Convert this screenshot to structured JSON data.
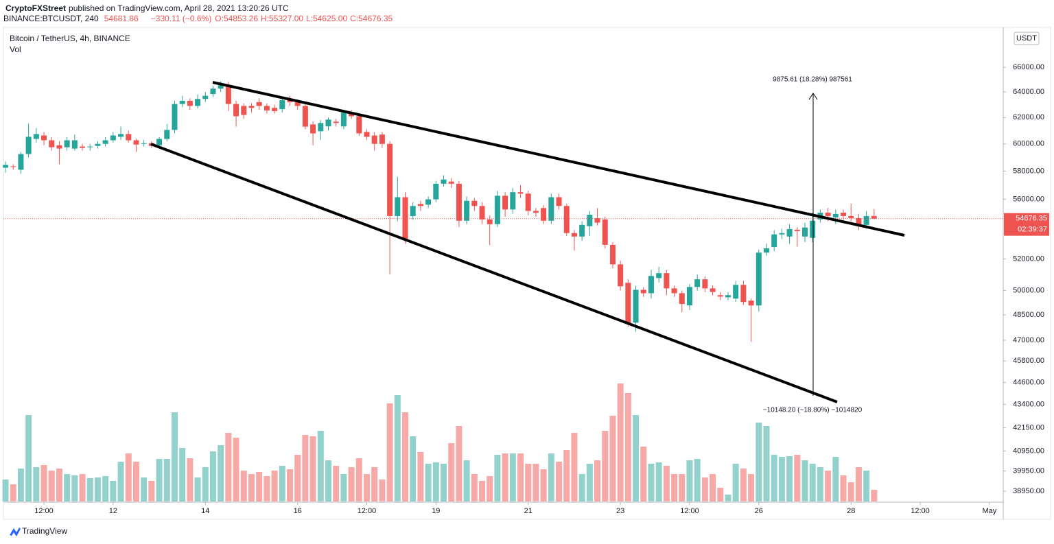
{
  "header": {
    "publisher": "CryptoFXStreet",
    "published": "published on TradingView.com, April 28, 2021 13:20:26 UTC",
    "symbol": "BINANCE:BTCUSDT, 240",
    "price": "54681.86",
    "change": "−330.11 (−0.6%)",
    "open": "O:54853.26",
    "high": "H:55327.00",
    "low": "L:54625.00",
    "close": "C:54676.35"
  },
  "chart_data": {
    "type": "candlestick",
    "title": "Bitcoin / TetherUS, 4h, BINANCE",
    "volume_label": "Vol",
    "currency": "USDT",
    "last_price_label": "54676.35",
    "countdown": "02:39:37",
    "log_scale": true,
    "up_color": "#26a69a",
    "down_color": "#ef5350",
    "volume_up_color": "#93d2cc",
    "volume_down_color": "#f7a9a7",
    "candles": {
      "open": [
        58250,
        58350,
        58100,
        59250,
        60370,
        60630,
        60270,
        59900,
        59750,
        59650,
        59800,
        59750,
        59850,
        60000,
        60270,
        60530,
        60740,
        60270,
        60000,
        60050,
        59900,
        60370,
        61050,
        63050,
        63300,
        62900,
        63450,
        63840,
        64270,
        64540,
        63050,
        62900,
        62900,
        63200,
        62900,
        62750,
        62650,
        63350,
        63200,
        62900,
        61470,
        60950,
        61320,
        61680,
        61320,
        62380,
        62100,
        60900,
        60630,
        60700,
        60000,
        54850,
        56150,
        54850,
        55680,
        55630,
        56000,
        57100,
        57250,
        57100,
        54530,
        55900,
        55540,
        54620,
        54300,
        56250,
        55300,
        56500,
        56400,
        55200,
        55400,
        54530,
        56150,
        55540,
        53700,
        53470,
        54160,
        54700,
        54620,
        52920,
        51650,
        50480,
        48040,
        50040,
        49830,
        50780,
        51090,
        50130,
        49830,
        49080,
        50220,
        50700,
        50130,
        49710,
        49580,
        49500,
        50350,
        49370,
        49080,
        52410,
        52780,
        53610,
        53470,
        53920,
        53470,
        53380,
        54620,
        55080,
        54760,
        55080,
        54850,
        54710,
        54250,
        54853.26
      ],
      "high": [
        58700,
        58500,
        59400,
        61530,
        61200,
        60900,
        60500,
        60200,
        60500,
        60700,
        60000,
        60000,
        60200,
        60500,
        60900,
        61300,
        61000,
        60400,
        60300,
        60200,
        60500,
        61500,
        63300,
        63700,
        63500,
        63800,
        64000,
        64500,
        64850,
        64800,
        63300,
        63100,
        63100,
        63500,
        63100,
        63000,
        63500,
        63700,
        63400,
        63100,
        61700,
        61800,
        62000,
        61900,
        62600,
        62600,
        62300,
        61100,
        60900,
        60900,
        60200,
        57600,
        56500,
        55800,
        55900,
        56200,
        57300,
        57700,
        57500,
        57300,
        56200,
        56100,
        55800,
        54900,
        56600,
        56500,
        56800,
        57000,
        56600,
        55400,
        55600,
        56400,
        56400,
        55700,
        53900,
        54500,
        55200,
        55400,
        54800,
        53100,
        51900,
        50700,
        50300,
        50200,
        51300,
        51500,
        51300,
        50300,
        50000,
        50400,
        51000,
        50900,
        50300,
        49900,
        49900,
        50600,
        50600,
        49500,
        52600,
        53000,
        53900,
        54000,
        54300,
        54100,
        54400,
        55080,
        55300,
        55400,
        55300,
        55300,
        55700,
        55000,
        55200,
        55327
      ],
      "low": [
        57900,
        58100,
        57800,
        59000,
        60100,
        59900,
        59500,
        58500,
        59500,
        59500,
        59500,
        59500,
        59650,
        59800,
        60100,
        60300,
        60100,
        59400,
        59800,
        59700,
        59800,
        60200,
        60800,
        62800,
        62600,
        62700,
        63200,
        63600,
        64000,
        62500,
        61300,
        61900,
        62400,
        62600,
        62300,
        62300,
        62400,
        62900,
        62600,
        61100,
        59900,
        60300,
        61000,
        61300,
        61100,
        61900,
        60600,
        60300,
        59500,
        59700,
        51000,
        54500,
        53000,
        54600,
        55200,
        55400,
        55800,
        56900,
        56800,
        54100,
        54300,
        55200,
        54300,
        52900,
        54100,
        54800,
        55000,
        56100,
        54900,
        54800,
        54300,
        54300,
        55300,
        53500,
        52550,
        53200,
        53500,
        54200,
        52700,
        51400,
        50000,
        47800,
        47500,
        49600,
        49500,
        50500,
        49700,
        49600,
        48670,
        48800,
        50000,
        49900,
        49700,
        49400,
        49400,
        49300,
        49100,
        46900,
        48700,
        52200,
        52500,
        53300,
        53000,
        52800,
        53100,
        53100,
        54400,
        54500,
        54300,
        54600,
        54500,
        53900,
        54000,
        54625
      ],
      "close": [
        58450,
        58300,
        59250,
        60530,
        60740,
        60270,
        59750,
        59650,
        60270,
        60270,
        59700,
        59800,
        60000,
        60270,
        60630,
        60740,
        60270,
        59950,
        60050,
        59850,
        60370,
        61050,
        63050,
        63300,
        62900,
        63450,
        63700,
        64270,
        64540,
        63050,
        62100,
        62200,
        62750,
        62900,
        62550,
        62500,
        63350,
        63200,
        62900,
        61300,
        60790,
        61580,
        61840,
        61580,
        62380,
        62100,
        60790,
        60530,
        60000,
        60000,
        54850,
        56150,
        53240,
        55540,
        55540,
        56000,
        57100,
        57400,
        57100,
        54530,
        55900,
        55540,
        54620,
        54300,
        56250,
        55300,
        56500,
        56400,
        55200,
        55080,
        54530,
        56150,
        55540,
        53700,
        53470,
        54250,
        54940,
        54400,
        52920,
        51650,
        50260,
        47960,
        50040,
        49830,
        50910,
        51090,
        50130,
        49830,
        49170,
        50220,
        50700,
        50130,
        49910,
        49620,
        49710,
        50350,
        49290,
        49080,
        52410,
        52690,
        53610,
        53700,
        53970,
        53830,
        54070,
        54530,
        55080,
        54850,
        54990,
        54850,
        54710,
        54160,
        54850,
        54676.35
      ],
      "volume": [
        32,
        25,
        48,
        126,
        50,
        53,
        45,
        48,
        40,
        38,
        40,
        34,
        35,
        37,
        30,
        58,
        70,
        58,
        35,
        30,
        62,
        62,
        130,
        78,
        63,
        35,
        50,
        73,
        82,
        100,
        93,
        45,
        40,
        43,
        37,
        45,
        52,
        47,
        68,
        97,
        95,
        103,
        60,
        52,
        40,
        50,
        63,
        40,
        50,
        32,
        143,
        155,
        130,
        95,
        72,
        55,
        57,
        55,
        85,
        110,
        60,
        40,
        30,
        37,
        68,
        70,
        70,
        70,
        55,
        55,
        47,
        70,
        58,
        75,
        100,
        40,
        55,
        60,
        103,
        125,
        172,
        158,
        126,
        80,
        55,
        57,
        52,
        40,
        40,
        60,
        62,
        35,
        40,
        20,
        10,
        55,
        48,
        40,
        115,
        110,
        68,
        65,
        66,
        68,
        60,
        55,
        50,
        45,
        65,
        38,
        28,
        50,
        45,
        17
      ]
    },
    "ylim": [
      38460,
      69350
    ],
    "vlim": [
      0,
      175
    ],
    "xlim": [
      -0.27,
      129.8
    ],
    "yticks": [
      {
        "value": 66000,
        "label": "66000.00"
      },
      {
        "value": 64000,
        "label": "64000.00"
      },
      {
        "value": 62000,
        "label": "62000.00"
      },
      {
        "value": 60000,
        "label": "60000.00"
      },
      {
        "value": 58000,
        "label": "58000.00"
      },
      {
        "value": 56000,
        "label": "56000.00"
      },
      {
        "value": 52000,
        "label": "52000.00"
      },
      {
        "value": 50000,
        "label": "50000.00"
      },
      {
        "value": 48500,
        "label": "48500.00"
      },
      {
        "value": 47000,
        "label": "47000.00"
      },
      {
        "value": 45800,
        "label": "45800.00"
      },
      {
        "value": 44600,
        "label": "44600.00"
      },
      {
        "value": 43400,
        "label": "43400.00"
      },
      {
        "value": 42150,
        "label": "42150.00"
      },
      {
        "value": 40950,
        "label": "40950.00"
      },
      {
        "value": 39950,
        "label": "39950.00"
      },
      {
        "value": 38950,
        "label": "38950.00"
      }
    ],
    "xticks": [
      {
        "value": 5,
        "label": "12:00"
      },
      {
        "value": 14,
        "label": "12"
      },
      {
        "value": 26,
        "label": "14"
      },
      {
        "value": 38,
        "label": "16"
      },
      {
        "value": 47,
        "label": "12:00"
      },
      {
        "value": 56,
        "label": "19"
      },
      {
        "value": 68,
        "label": "21"
      },
      {
        "value": 80,
        "label": "23"
      },
      {
        "value": 89,
        "label": "12:00"
      },
      {
        "value": 98,
        "label": "26"
      },
      {
        "value": 110,
        "label": "28"
      },
      {
        "value": 119,
        "label": "12:00"
      },
      {
        "value": 128,
        "label": "May"
      }
    ],
    "measure": {
      "up_label": "9875.61 (18.28%) 987561",
      "down_label": "−10148.20 (−18.80%) −1014820"
    }
  },
  "footer": {
    "brand": "TradingView"
  }
}
